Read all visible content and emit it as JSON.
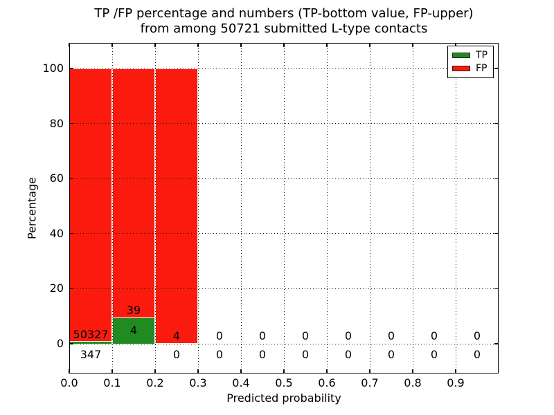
{
  "title": {
    "line1": "TP /FP percentage and numbers (TP-bottom value, FP-upper)",
    "line2": "from among 50721 submitted L-type contacts"
  },
  "axes": {
    "xlabel": "Predicted probability",
    "ylabel": "Percentage",
    "x_ticks": [
      "0.0",
      "0.1",
      "0.2",
      "0.3",
      "0.4",
      "0.5",
      "0.6",
      "0.7",
      "0.8",
      "0.9"
    ],
    "y_ticks": [
      "0",
      "20",
      "40",
      "60",
      "80",
      "100"
    ]
  },
  "legend": {
    "position": "upper right",
    "items": [
      {
        "label": "TP",
        "color": "#208b20"
      },
      {
        "label": "FP",
        "color": "#fa1a0e"
      }
    ]
  },
  "chart_data": {
    "type": "bar",
    "stacked": true,
    "normalized": "percent within each bin",
    "title": "TP /FP percentage and numbers (TP-bottom value, FP-upper) from among 50721 submitted L-type contacts",
    "total_contacts": 50721,
    "xlabel": "Predicted probability",
    "ylabel": "Percentage",
    "xlim": [
      0,
      1.0
    ],
    "ylim": [
      -11,
      109
    ],
    "bin_width": 0.1,
    "grid": "dotted",
    "categories": [
      "0.0-0.1",
      "0.1-0.2",
      "0.2-0.3",
      "0.3-0.4",
      "0.4-0.5",
      "0.5-0.6",
      "0.6-0.7",
      "0.7-0.8",
      "0.8-0.9",
      "0.9-1.0"
    ],
    "series": [
      {
        "name": "TP",
        "color": "#208b20",
        "counts": [
          347,
          4,
          0,
          0,
          0,
          0,
          0,
          0,
          0,
          0
        ],
        "percent": [
          0.6848,
          9.3023,
          0,
          0,
          0,
          0,
          0,
          0,
          0,
          0
        ]
      },
      {
        "name": "FP",
        "color": "#fa1a0e",
        "counts": [
          50327,
          39,
          4,
          0,
          0,
          0,
          0,
          0,
          0,
          0
        ],
        "percent": [
          99.3152,
          90.6977,
          100,
          0,
          0,
          0,
          0,
          0,
          0,
          0
        ]
      }
    ]
  }
}
